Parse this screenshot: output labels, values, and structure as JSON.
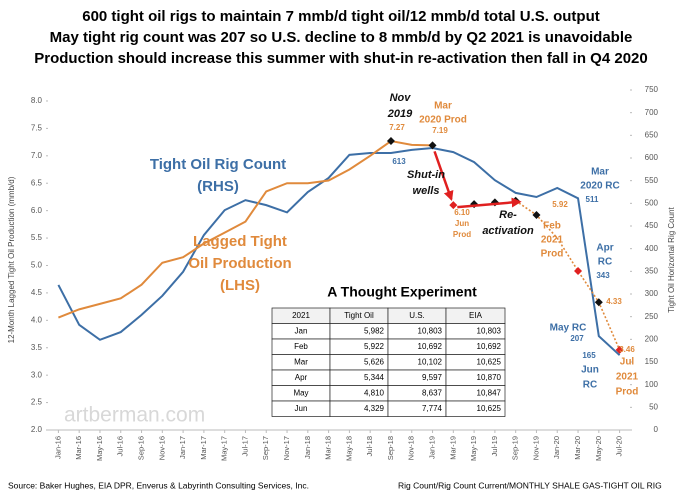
{
  "chart_data": {
    "type": "line",
    "title": [
      "600 tight oil rigs to maintain 7 mmb/d tight oil/12 mmb/d total U.S. output",
      "May tight rig count was 207 so U.S. decline to 8 mmb/d by Q2 2021 is unavoidable",
      "Production should increase this summer with shut-in re-activation then fall in Q4 2020"
    ],
    "ylabel": "12-Month Lagged Tight Oil Production (mmb/d)",
    "y2label": "Tight Oil Horizontal Rig Count",
    "categories": [
      "Jan-16",
      "Mar-16",
      "May-16",
      "Jul-16",
      "Sep-16",
      "Nov-16",
      "Jan-17",
      "Mar-17",
      "May-17",
      "Jul-17",
      "Sep-17",
      "Nov-17",
      "Jan-18",
      "Mar-18",
      "May-18",
      "Jul-18",
      "Sep-18",
      "Nov-18",
      "Jan-19",
      "Mar-19",
      "May-19",
      "Jul-19",
      "Sep-19",
      "Nov-19",
      "Jan-20",
      "Mar-20",
      "May-20",
      "Jul-20"
    ],
    "ylim": [
      2.0,
      8.2
    ],
    "yticks": [
      {
        "value": 2,
        "label": "2.0"
      },
      2.5,
      {
        "value": 3,
        "label": "3.0"
      },
      3.5,
      {
        "value": 4,
        "label": "4.0"
      },
      4.5,
      {
        "value": 5,
        "label": "5.0"
      },
      5.5,
      {
        "value": 6,
        "label": "6.0"
      },
      6.5,
      {
        "value": 7,
        "label": "7.0"
      },
      7.5,
      {
        "value": 8,
        "label": "8.0"
      }
    ],
    "y2lim": [
      0,
      750
    ],
    "y2ticks": [
      0,
      50,
      100,
      150,
      200,
      250,
      300,
      350,
      400,
      450,
      500,
      550,
      600,
      650,
      700,
      750
    ],
    "grid": false,
    "series": [
      {
        "color": "#3d6fa6",
        "axis": "y2",
        "style": "solid",
        "values": [
          320,
          232,
          199,
          216,
          254,
          296,
          349,
          430,
          485,
          507,
          496,
          480,
          525,
          556,
          607,
          611,
          611,
          618,
          622,
          613,
          591,
          551,
          523,
          514,
          534,
          511,
          207,
          165
        ]
      },
      {
        "color": "#e08a3c",
        "style": "solid",
        "values": [
          4.05,
          4.2,
          4.3,
          4.4,
          4.65,
          5.05,
          5.15,
          5.4,
          5.6,
          5.8,
          6.35,
          6.5,
          6.5,
          6.55,
          6.75,
          7.0,
          7.27,
          7.2,
          7.19,
          null,
          null,
          null,
          null,
          null,
          null,
          null,
          null,
          null
        ]
      },
      {
        "color": "#e08a3c",
        "style": "dotted",
        "values": [
          null,
          null,
          null,
          null,
          null,
          null,
          null,
          null,
          null,
          null,
          null,
          null,
          null,
          null,
          null,
          null,
          null,
          null,
          null,
          null,
          null,
          null,
          6.18,
          5.92,
          5.5,
          4.9,
          4.33,
          3.46
        ]
      },
      {
        "color": "#111111",
        "style": "markers",
        "values": [
          null,
          null,
          null,
          null,
          null,
          null,
          null,
          null,
          null,
          null,
          null,
          null,
          null,
          null,
          null,
          null,
          7.27,
          null,
          7.19,
          null,
          6.12,
          6.15,
          6.18,
          5.92,
          null,
          null,
          4.33,
          null
        ]
      },
      {
        "color": "#e02020",
        "style": "markers",
        "values": [
          null,
          null,
          null,
          null,
          null,
          null,
          null,
          null,
          null,
          null,
          null,
          null,
          null,
          null,
          null,
          null,
          null,
          null,
          null,
          6.1,
          null,
          null,
          null,
          null,
          null,
          4.9,
          null,
          3.46
        ]
      }
    ],
    "annotations": [
      {
        "lines": [
          "Nov",
          "2019"
        ]
      },
      {
        "lines": [
          "Mar",
          "2020 Prod"
        ]
      },
      {
        "lines": [
          "7.27"
        ]
      },
      {
        "lines": [
          "7.19"
        ]
      },
      {
        "lines": [
          "613"
        ]
      },
      {
        "lines": [
          "Shut-in",
          "wells"
        ]
      },
      {
        "lines": [
          "6.10",
          "Jun",
          "Prod"
        ]
      },
      {
        "lines": [
          "Re-",
          "activation"
        ]
      },
      {
        "lines": [
          "5.92"
        ]
      },
      {
        "lines": [
          "Feb",
          "2021",
          "Prod"
        ]
      },
      {
        "lines": [
          "Mar",
          "2020 RC"
        ]
      },
      {
        "lines": [
          "511"
        ]
      },
      {
        "lines": [
          "Apr",
          "RC"
        ]
      },
      {
        "lines": [
          "343"
        ]
      },
      {
        "lines": [
          "4.33"
        ]
      },
      {
        "lines": [
          "May RC"
        ]
      },
      {
        "lines": [
          "207"
        ]
      },
      {
        "lines": [
          "3.46"
        ]
      },
      {
        "lines": [
          "165"
        ]
      },
      {
        "lines": [
          "Jun",
          "RC"
        ]
      },
      {
        "lines": [
          "Jul",
          "2021",
          "Prod"
        ]
      },
      {
        "lines": [
          "Tight Oil Rig Count",
          "(RHS)"
        ]
      },
      {
        "lines": [
          "Lagged Tight",
          "Oil Production",
          "(LHS)"
        ]
      }
    ],
    "table": {
      "title": "A Thought Experiment",
      "header": [
        "2021",
        "Tight Oil",
        "U.S.",
        "EIA"
      ],
      "rows": [
        [
          "Jan",
          "5,982",
          "10,803",
          "10,803"
        ],
        [
          "Feb",
          "5,922",
          "10,692",
          "10,692"
        ],
        [
          "Mar",
          "5,626",
          "10,102",
          "10,625"
        ],
        [
          "Apr",
          "5,344",
          "9,597",
          "10,870"
        ],
        [
          "May",
          "4,810",
          "8,637",
          "10,847"
        ],
        [
          "Jun",
          "4,329",
          "7,774",
          "10,625"
        ]
      ]
    },
    "watermark": "artberman.com",
    "source": "Source: Baker Hughes, EIA DPR, Enverus & Labyrinth Consulting Services, Inc.",
    "footnote": "Rig Count/Rig Count Current/MONTHLY SHALE GAS-TIGHT OIL RIG"
  }
}
